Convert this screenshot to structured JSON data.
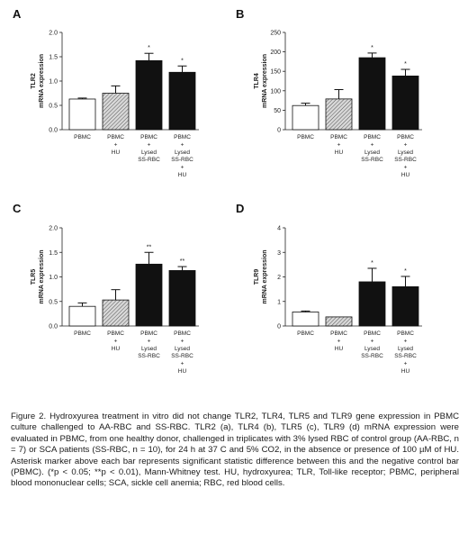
{
  "chart_data": [
    {
      "type": "bar",
      "panel": "A",
      "ylabel_lines": [
        "TLR2",
        "mRNA expression"
      ],
      "ylim": [
        0,
        2.0
      ],
      "yticks": [
        "0.0",
        "0.5",
        "1.0",
        "1.5",
        "2.0"
      ],
      "categories": [
        [
          "PBMC"
        ],
        [
          "PBMC",
          "+",
          "HU"
        ],
        [
          "PBMC",
          "+",
          "Lysed",
          "SS-RBC"
        ],
        [
          "PBMC",
          "+",
          "Lysed",
          "SS-RBC",
          "+",
          "HU"
        ]
      ],
      "values": [
        0.63,
        0.75,
        1.42,
        1.18
      ],
      "errors": [
        0.02,
        0.15,
        0.15,
        0.13
      ],
      "significance": [
        "",
        "",
        "*",
        "*"
      ],
      "bar_fills": [
        "white",
        "hatched",
        "black",
        "black"
      ]
    },
    {
      "type": "bar",
      "panel": "B",
      "ylabel_lines": [
        "TLR4",
        "mRNA expression"
      ],
      "ylim": [
        0,
        250
      ],
      "yticks": [
        "0",
        "50",
        "100",
        "150",
        "200",
        "250"
      ],
      "categories": [
        [
          "PBMC"
        ],
        [
          "PBMC",
          "+",
          "HU"
        ],
        [
          "PBMC",
          "+",
          "Lysed",
          "SS-RBC"
        ],
        [
          "PBMC",
          "+",
          "Lysed",
          "SS-RBC",
          "+",
          "HU"
        ]
      ],
      "values": [
        62,
        79,
        185,
        138
      ],
      "errors": [
        6,
        24,
        12,
        17
      ],
      "significance": [
        "",
        "",
        "*",
        "*"
      ],
      "bar_fills": [
        "white",
        "hatched",
        "black",
        "black"
      ]
    },
    {
      "type": "bar",
      "panel": "C",
      "ylabel_lines": [
        "TLR5",
        "mRNA expression"
      ],
      "ylim": [
        0,
        2.0
      ],
      "yticks": [
        "0.0",
        "0.5",
        "1.0",
        "1.5",
        "2.0"
      ],
      "categories": [
        [
          "PBMC"
        ],
        [
          "PBMC",
          "+",
          "HU"
        ],
        [
          "PBMC",
          "+",
          "Lysed",
          "SS-RBC"
        ],
        [
          "PBMC",
          "+",
          "Lysed",
          "SS-RBC",
          "+",
          "HU"
        ]
      ],
      "values": [
        0.4,
        0.53,
        1.26,
        1.13
      ],
      "errors": [
        0.07,
        0.21,
        0.24,
        0.08
      ],
      "significance": [
        "",
        "",
        "**",
        "**"
      ],
      "bar_fills": [
        "white",
        "hatched",
        "black",
        "black"
      ]
    },
    {
      "type": "bar",
      "panel": "D",
      "ylabel_lines": [
        "TLR9",
        "mRNA expression"
      ],
      "ylim": [
        0,
        4
      ],
      "yticks": [
        "0",
        "1",
        "2",
        "3",
        "4"
      ],
      "categories": [
        [
          "PBMC"
        ],
        [
          "PBMC",
          "+",
          "HU"
        ],
        [
          "PBMC",
          "+",
          "Lysed",
          "SS-RBC"
        ],
        [
          "PBMC",
          "+",
          "Lysed",
          "SS-RBC",
          "+",
          "HU"
        ]
      ],
      "values": [
        0.57,
        0.37,
        1.8,
        1.6
      ],
      "errors": [
        0.04,
        0.0,
        0.55,
        0.42
      ],
      "significance": [
        "",
        "",
        "*",
        "*"
      ],
      "bar_fills": [
        "white",
        "hatched",
        "black",
        "black"
      ]
    }
  ],
  "caption": "Figure 2. Hydroxyurea treatment in vitro did not change TLR2, TLR4, TLR5 and TLR9 gene expression in PBMC culture challenged to AA-RBC and SS-RBC. TLR2 (a), TLR4 (b), TLR5 (c), TLR9 (d) mRNA expression were evaluated in PBMC, from one healthy donor, challenged in triplicates with 3% lysed RBC of control group (AA-RBC, n = 7) or SCA patients (SS-RBC, n = 10), for 24 h at 37 C and 5% CO2, in the absence or presence of 100 µM of HU. Asterisk marker above each bar represents significant statistic difference between this and the negative control bar (PBMC). (*p < 0.05; **p < 0.01), Mann-Whitney test. HU, hydroxyurea; TLR, Toll-like receptor; PBMC, peripheral blood mononuclear cells; SCA, sickle cell anemia; RBC, red blood cells.",
  "colors": {
    "bar_black": "#111111",
    "bar_white": "#ffffff",
    "hatch": "#555555",
    "axis": "#222222"
  }
}
